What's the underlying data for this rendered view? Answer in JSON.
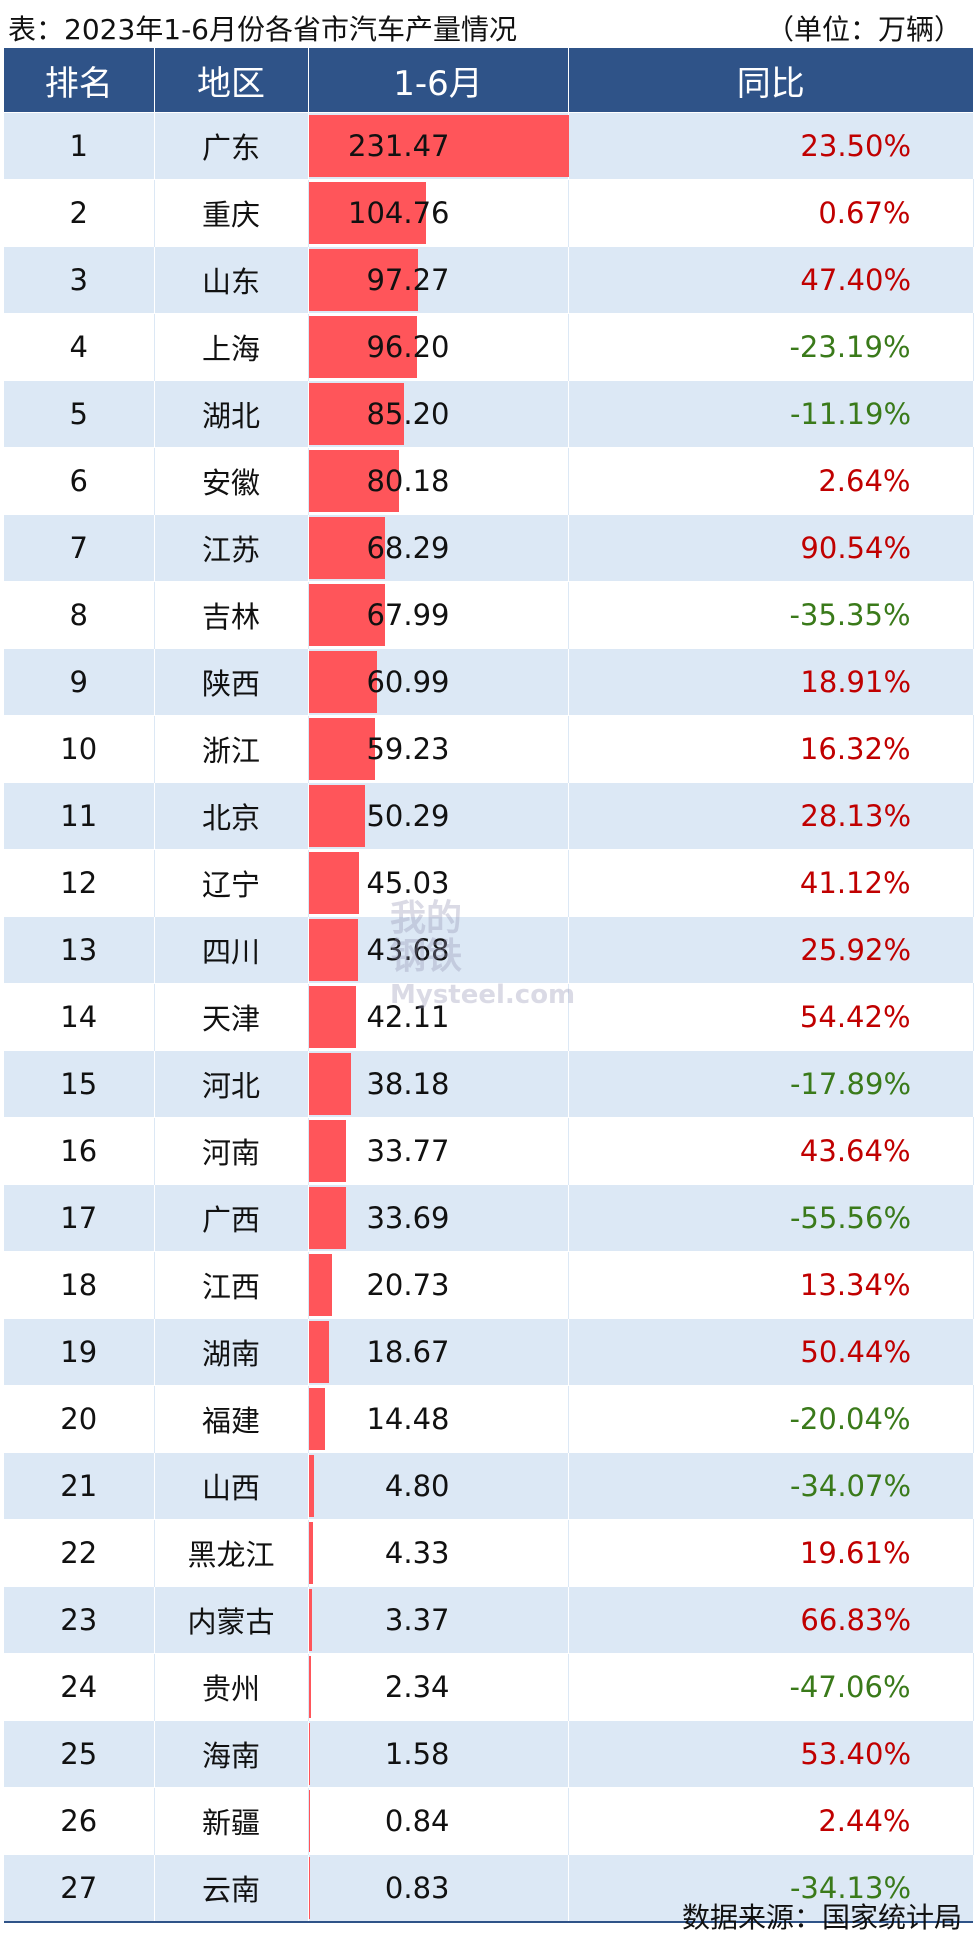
{
  "caption": {
    "title": "表：2023年1-6月份各省市汽车产量情况",
    "unit": "（单位：万辆）"
  },
  "headers": {
    "rank": "排名",
    "region": "地区",
    "value": "1-6月",
    "yoy": "同比"
  },
  "source": "数据来源：国家统计局",
  "watermark": {
    "line1": "我的",
    "line2": "钢铁",
    "line3": "Mysteel.com"
  },
  "colors": {
    "header_bg": "#2f5388",
    "bar": "#ff555a",
    "positive": "#c00000",
    "negative": "#3a7a1a",
    "stripe": "#dce8f5"
  },
  "chart_data": {
    "type": "table",
    "bar_max": 231.47,
    "rows": [
      {
        "rank": "1",
        "region": "广东",
        "value": 231.47,
        "yoy": "23.50%"
      },
      {
        "rank": "2",
        "region": "重庆",
        "value": 104.76,
        "yoy": "0.67%"
      },
      {
        "rank": "3",
        "region": "山东",
        "value": 97.27,
        "yoy": "47.40%"
      },
      {
        "rank": "4",
        "region": "上海",
        "value": 96.2,
        "yoy": "-23.19%"
      },
      {
        "rank": "5",
        "region": "湖北",
        "value": 85.2,
        "yoy": "-11.19%"
      },
      {
        "rank": "6",
        "region": "安徽",
        "value": 80.18,
        "yoy": "2.64%"
      },
      {
        "rank": "7",
        "region": "江苏",
        "value": 68.29,
        "yoy": "90.54%"
      },
      {
        "rank": "8",
        "region": "吉林",
        "value": 67.99,
        "yoy": "-35.35%"
      },
      {
        "rank": "9",
        "region": "陕西",
        "value": 60.99,
        "yoy": "18.91%"
      },
      {
        "rank": "10",
        "region": "浙江",
        "value": 59.23,
        "yoy": "16.32%"
      },
      {
        "rank": "11",
        "region": "北京",
        "value": 50.29,
        "yoy": "28.13%"
      },
      {
        "rank": "12",
        "region": "辽宁",
        "value": 45.03,
        "yoy": "41.12%"
      },
      {
        "rank": "13",
        "region": "四川",
        "value": 43.68,
        "yoy": "25.92%"
      },
      {
        "rank": "14",
        "region": "天津",
        "value": 42.11,
        "yoy": "54.42%"
      },
      {
        "rank": "15",
        "region": "河北",
        "value": 38.18,
        "yoy": "-17.89%"
      },
      {
        "rank": "16",
        "region": "河南",
        "value": 33.77,
        "yoy": "43.64%"
      },
      {
        "rank": "17",
        "region": "广西",
        "value": 33.69,
        "yoy": "-55.56%"
      },
      {
        "rank": "18",
        "region": "江西",
        "value": 20.73,
        "yoy": "13.34%"
      },
      {
        "rank": "19",
        "region": "湖南",
        "value": 18.67,
        "yoy": "50.44%"
      },
      {
        "rank": "20",
        "region": "福建",
        "value": 14.48,
        "yoy": "-20.04%"
      },
      {
        "rank": "21",
        "region": "山西",
        "value": 4.8,
        "yoy": "-34.07%"
      },
      {
        "rank": "22",
        "region": "黑龙江",
        "value": 4.33,
        "yoy": "19.61%"
      },
      {
        "rank": "23",
        "region": "内蒙古",
        "value": 3.37,
        "yoy": "66.83%"
      },
      {
        "rank": "24",
        "region": "贵州",
        "value": 2.34,
        "yoy": "-47.06%"
      },
      {
        "rank": "25",
        "region": "海南",
        "value": 1.58,
        "yoy": "53.40%"
      },
      {
        "rank": "26",
        "region": "新疆",
        "value": 0.84,
        "yoy": "2.44%"
      },
      {
        "rank": "27",
        "region": "云南",
        "value": 0.83,
        "yoy": "-34.13%"
      }
    ]
  }
}
